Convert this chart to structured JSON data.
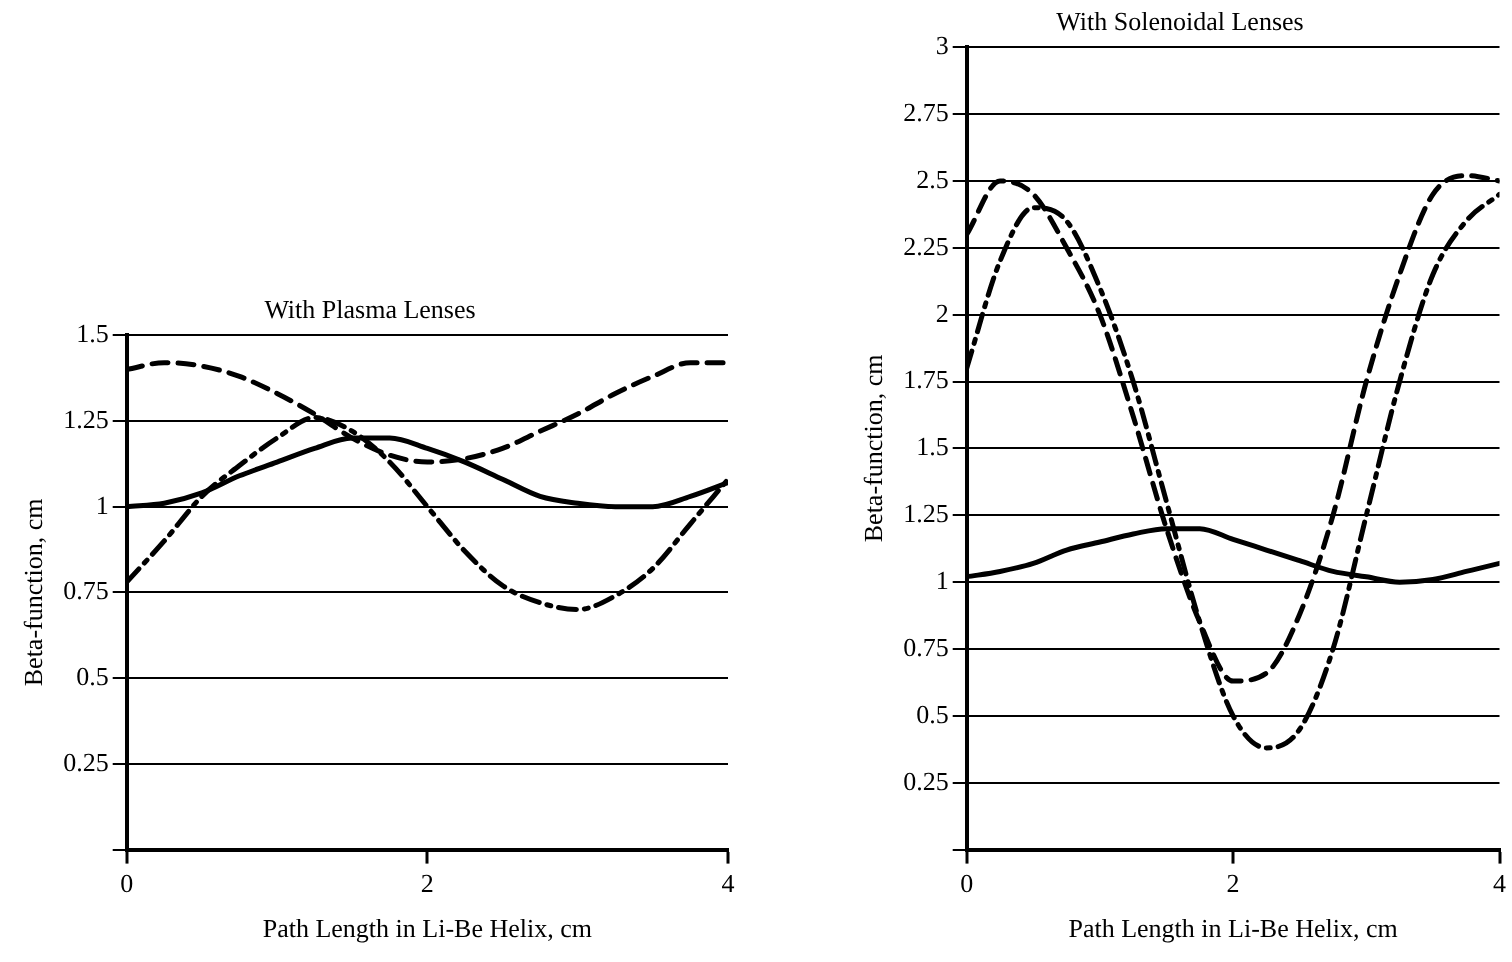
{
  "chart_data": [
    {
      "type": "line",
      "title": "With Plasma Lenses",
      "xlabel": "Path Length in Li-Be Helix, cm",
      "ylabel": "Beta-function, cm",
      "x": [
        0,
        0.25,
        0.5,
        0.75,
        1,
        1.25,
        1.5,
        1.75,
        2,
        2.25,
        2.5,
        2.75,
        3,
        3.25,
        3.5,
        3.75,
        4
      ],
      "xlim": [
        0,
        4
      ],
      "xticks": [
        0,
        2,
        4
      ],
      "ylim": [
        0,
        1.5
      ],
      "yticks": [
        {
          "value": 0,
          "label": null
        },
        0.25,
        0.5,
        0.75,
        1,
        1.25,
        1.5
      ],
      "grid": "y",
      "series": [
        {
          "color": "#000000",
          "line_style": "solid",
          "values": [
            1.0,
            1.01,
            1.04,
            1.09,
            1.13,
            1.17,
            1.2,
            1.2,
            1.17,
            1.13,
            1.08,
            1.03,
            1.01,
            1.0,
            1.0,
            1.03,
            1.07
          ]
        },
        {
          "color": "#000000",
          "line_style": "dashed",
          "values": [
            1.4,
            1.42,
            1.41,
            1.38,
            1.33,
            1.27,
            1.2,
            1.15,
            1.13,
            1.14,
            1.17,
            1.22,
            1.27,
            1.33,
            1.38,
            1.42,
            1.42
          ]
        },
        {
          "color": "#000000",
          "line_style": "dashdot",
          "values": [
            0.78,
            0.9,
            1.03,
            1.12,
            1.2,
            1.26,
            1.22,
            1.13,
            1.0,
            0.87,
            0.77,
            0.72,
            0.7,
            0.74,
            0.82,
            0.95,
            1.08
          ]
        }
      ]
    },
    {
      "type": "line",
      "title": "With Solenoidal Lenses",
      "xlabel": "Path Length in Li-Be Helix, cm",
      "ylabel": "Beta-function, cm",
      "x": [
        0,
        0.25,
        0.5,
        0.75,
        1,
        1.25,
        1.5,
        1.75,
        2,
        2.25,
        2.5,
        2.75,
        3,
        3.25,
        3.5,
        3.75,
        4
      ],
      "xlim": [
        0,
        4
      ],
      "xticks": [
        0,
        2,
        4
      ],
      "ylim": [
        0,
        3
      ],
      "yticks": [
        {
          "value": 0,
          "label": null
        },
        0.25,
        0.5,
        0.75,
        1,
        1.25,
        1.5,
        1.75,
        2,
        2.25,
        2.5,
        2.75,
        3
      ],
      "grid": "y",
      "series": [
        {
          "color": "#000000",
          "line_style": "solid",
          "values": [
            1.02,
            1.04,
            1.07,
            1.12,
            1.15,
            1.18,
            1.2,
            1.2,
            1.16,
            1.12,
            1.08,
            1.04,
            1.02,
            1.0,
            1.01,
            1.04,
            1.07
          ]
        },
        {
          "color": "#000000",
          "line_style": "dashed",
          "values": [
            2.3,
            2.5,
            2.45,
            2.25,
            2.0,
            1.62,
            1.2,
            0.85,
            0.63,
            0.66,
            0.88,
            1.25,
            1.75,
            2.15,
            2.45,
            2.52,
            2.5
          ]
        },
        {
          "color": "#000000",
          "line_style": "dashdot",
          "values": [
            1.8,
            2.2,
            2.4,
            2.35,
            2.1,
            1.75,
            1.3,
            0.85,
            0.5,
            0.38,
            0.45,
            0.75,
            1.25,
            1.75,
            2.15,
            2.35,
            2.45
          ]
        }
      ]
    }
  ]
}
